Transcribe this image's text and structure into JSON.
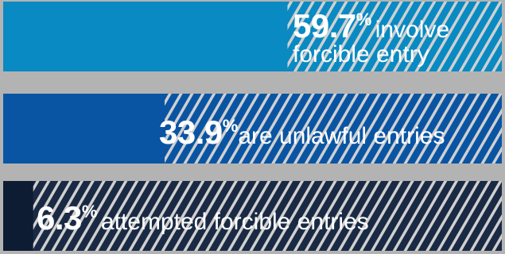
{
  "chart_data": {
    "type": "bar",
    "orientation": "horizontal",
    "categories": [
      "involve forcible entry",
      "are unlawful entries",
      "attempted forcible entries"
    ],
    "values": [
      59.7,
      33.9,
      6.3
    ],
    "unit": "%",
    "xlim": [
      0,
      100
    ]
  },
  "bars": [
    {
      "value_text": "59.7",
      "sign": "%",
      "desc_line1": "involve",
      "desc_line2": "forcible entry",
      "color": "#0a8ac2",
      "stripe_bg": "#0a8ac2"
    },
    {
      "value_text": "33.9",
      "sign": "%",
      "desc_line1": "are unlawful entries",
      "desc_line2": "",
      "color": "#0a55a3",
      "stripe_bg": "#0a55a3"
    },
    {
      "value_text": "6.3",
      "sign": "%",
      "desc_line1": "attempted forcible entries",
      "desc_line2": "",
      "color": "#0e1c33",
      "stripe_bg": "#1a2a44"
    }
  ],
  "colors": {
    "background": "#b3b3b3",
    "stripe_light": "#d0d0d0"
  }
}
